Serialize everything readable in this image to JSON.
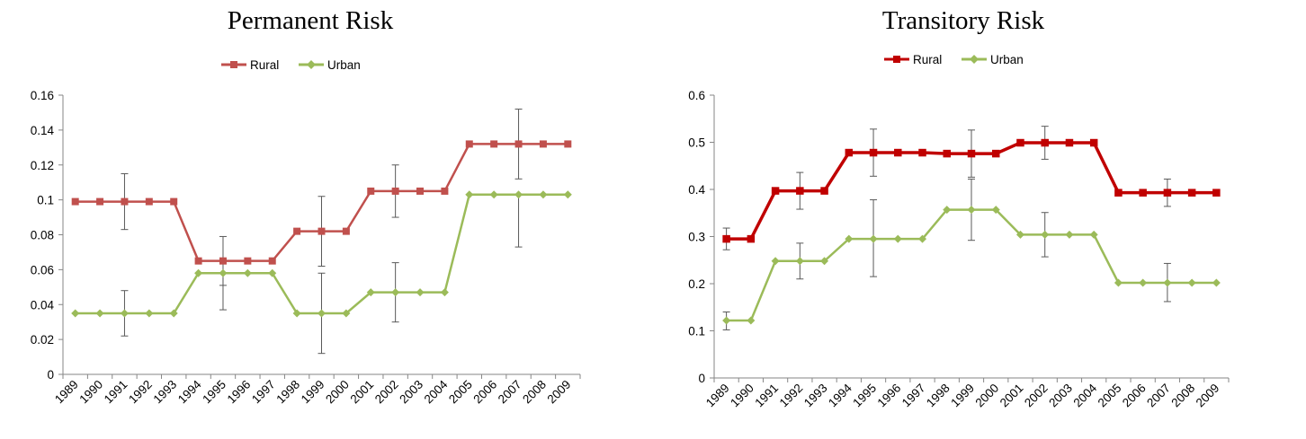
{
  "colors": {
    "rural": "#c0504d",
    "rural_dark": "#c00000",
    "urban": "#9bbb59",
    "axis": "#868686",
    "error": "#595959"
  },
  "legend": {
    "rural": "Rural",
    "urban": "Urban"
  },
  "chart_data": [
    {
      "type": "line",
      "title": "Permanent Risk",
      "xlabel": "",
      "ylabel": "",
      "categories": [
        "1989",
        "1990",
        "1991",
        "1992",
        "1993",
        "1994",
        "1995",
        "1996",
        "1997",
        "1998",
        "1999",
        "2000",
        "2001",
        "2002",
        "2003",
        "2004",
        "2005",
        "2006",
        "2007",
        "2008",
        "2009"
      ],
      "ylim": [
        0,
        0.16
      ],
      "yticks": [
        "0",
        "0.02",
        "0.04",
        "0.06",
        "0.08",
        "0.1",
        "0.12",
        "0.14",
        "0.16"
      ],
      "ytick_values": [
        0,
        0.02,
        0.04,
        0.06,
        0.08,
        0.1,
        0.12,
        0.14,
        0.16
      ],
      "legend_position": "top",
      "series": [
        {
          "name": "Rural",
          "color": "#c0504d",
          "marker": "square",
          "values": [
            0.099,
            0.099,
            0.099,
            0.099,
            0.099,
            0.065,
            0.065,
            0.065,
            0.065,
            0.082,
            0.082,
            0.082,
            0.105,
            0.105,
            0.105,
            0.105,
            0.132,
            0.132,
            0.132,
            0.132,
            0.132
          ],
          "error_bars": [
            {
              "index": 2,
              "low": 0.083,
              "high": 0.115
            },
            {
              "index": 6,
              "low": 0.051,
              "high": 0.079
            },
            {
              "index": 10,
              "low": 0.062,
              "high": 0.102
            },
            {
              "index": 13,
              "low": 0.09,
              "high": 0.12
            },
            {
              "index": 18,
              "low": 0.112,
              "high": 0.152
            }
          ]
        },
        {
          "name": "Urban",
          "color": "#9bbb59",
          "marker": "diamond",
          "values": [
            0.035,
            0.035,
            0.035,
            0.035,
            0.035,
            0.058,
            0.058,
            0.058,
            0.058,
            0.035,
            0.035,
            0.035,
            0.047,
            0.047,
            0.047,
            0.047,
            0.103,
            0.103,
            0.103,
            0.103,
            0.103
          ],
          "error_bars": [
            {
              "index": 2,
              "low": 0.022,
              "high": 0.048
            },
            {
              "index": 6,
              "low": 0.037,
              "high": 0.058
            },
            {
              "index": 10,
              "low": 0.012,
              "high": 0.058
            },
            {
              "index": 13,
              "low": 0.03,
              "high": 0.064
            },
            {
              "index": 18,
              "low": 0.073,
              "high": 0.103
            }
          ]
        }
      ]
    },
    {
      "type": "line",
      "title": "Transitory Risk",
      "xlabel": "",
      "ylabel": "",
      "categories": [
        "1989",
        "1990",
        "1991",
        "1992",
        "1993",
        "1994",
        "1995",
        "1996",
        "1997",
        "1998",
        "1999",
        "2000",
        "2001",
        "2002",
        "2003",
        "2004",
        "2005",
        "2006",
        "2007",
        "2008",
        "2009"
      ],
      "ylim": [
        0,
        0.6
      ],
      "yticks": [
        "0",
        "0.1",
        "0.2",
        "0.3",
        "0.4",
        "0.5",
        "0.6"
      ],
      "ytick_values": [
        0,
        0.1,
        0.2,
        0.3,
        0.4,
        0.5,
        0.6
      ],
      "legend_position": "top",
      "series": [
        {
          "name": "Rural",
          "color": "#c00000",
          "marker": "square",
          "values": [
            0.295,
            0.295,
            0.397,
            0.397,
            0.397,
            0.478,
            0.478,
            0.478,
            0.478,
            0.476,
            0.476,
            0.476,
            0.499,
            0.499,
            0.499,
            0.499,
            0.393,
            0.393,
            0.393,
            0.393,
            0.393
          ],
          "error_bars": [
            {
              "index": 0,
              "low": 0.272,
              "high": 0.318
            },
            {
              "index": 3,
              "low": 0.358,
              "high": 0.436
            },
            {
              "index": 6,
              "low": 0.428,
              "high": 0.528
            },
            {
              "index": 10,
              "low": 0.426,
              "high": 0.526
            },
            {
              "index": 13,
              "low": 0.464,
              "high": 0.534
            },
            {
              "index": 18,
              "low": 0.364,
              "high": 0.422
            }
          ]
        },
        {
          "name": "Urban",
          "color": "#9bbb59",
          "marker": "diamond",
          "values": [
            0.122,
            0.122,
            0.248,
            0.248,
            0.248,
            0.295,
            0.295,
            0.295,
            0.295,
            0.357,
            0.357,
            0.357,
            0.304,
            0.304,
            0.304,
            0.304,
            0.202,
            0.202,
            0.202,
            0.202,
            0.202
          ],
          "error_bars": [
            {
              "index": 0,
              "low": 0.102,
              "high": 0.14
            },
            {
              "index": 3,
              "low": 0.21,
              "high": 0.286
            },
            {
              "index": 6,
              "low": 0.215,
              "high": 0.378
            },
            {
              "index": 10,
              "low": 0.292,
              "high": 0.422
            },
            {
              "index": 13,
              "low": 0.257,
              "high": 0.351
            },
            {
              "index": 18,
              "low": 0.162,
              "high": 0.243
            }
          ]
        }
      ]
    }
  ]
}
